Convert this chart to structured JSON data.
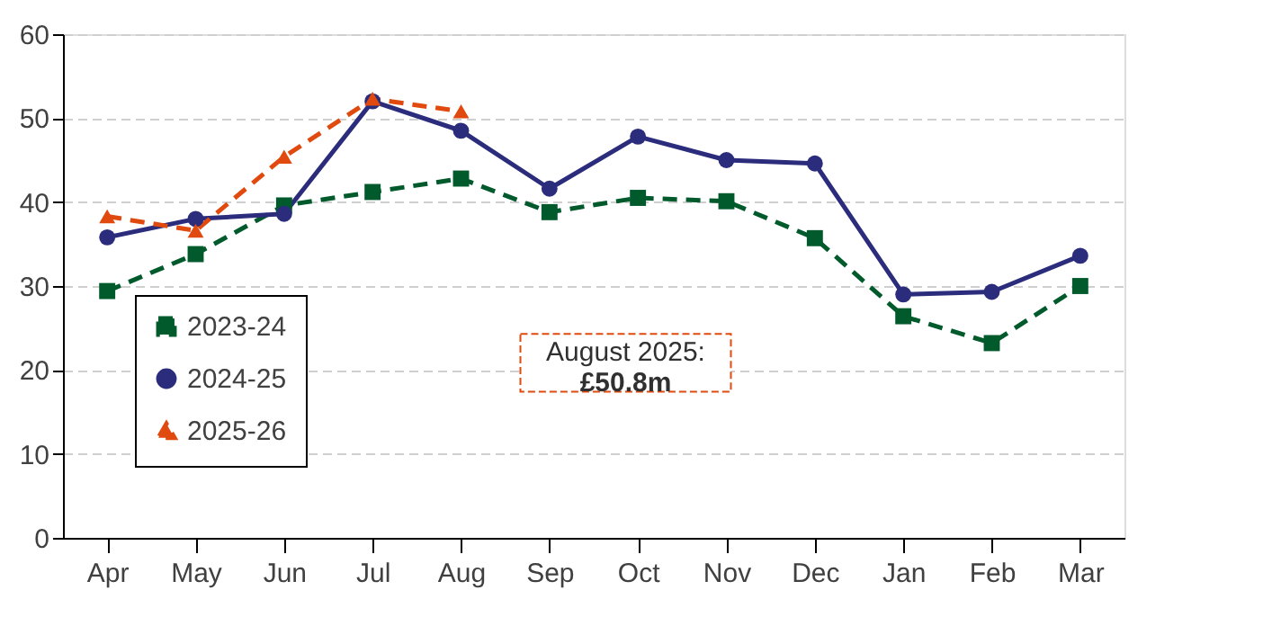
{
  "chart_data": {
    "type": "line",
    "categories": [
      "Apr",
      "May",
      "Jun",
      "Jul",
      "Aug",
      "Sep",
      "Oct",
      "Nov",
      "Dec",
      "Jan",
      "Feb",
      "Mar"
    ],
    "series": [
      {
        "name": "2023-24",
        "color": "#005a2b",
        "marker": "square",
        "line_style": "dashed",
        "values": [
          29.4,
          33.8,
          39.6,
          41.2,
          42.8,
          38.8,
          40.5,
          40.1,
          35.7,
          26.4,
          23.2,
          30.0
        ]
      },
      {
        "name": "2024-25",
        "color": "#2b2c7c",
        "marker": "circle",
        "line_style": "solid",
        "values": [
          35.8,
          38.0,
          38.6,
          52.0,
          48.5,
          41.6,
          47.8,
          45.0,
          44.6,
          29.0,
          29.3,
          33.6
        ]
      },
      {
        "name": "2025-26",
        "color": "#e04a0f",
        "marker": "triangle",
        "line_style": "dashed",
        "values": [
          38.3,
          36.6,
          45.4,
          52.3,
          50.8,
          null,
          null,
          null,
          null,
          null,
          null,
          null
        ]
      }
    ],
    "ylim": [
      0,
      60
    ],
    "yticks": [
      0,
      10,
      20,
      30,
      40,
      50,
      60
    ],
    "grid": "y",
    "legend": "bottom left",
    "annotations": [
      "August 2025:\n£50.8m"
    ]
  }
}
